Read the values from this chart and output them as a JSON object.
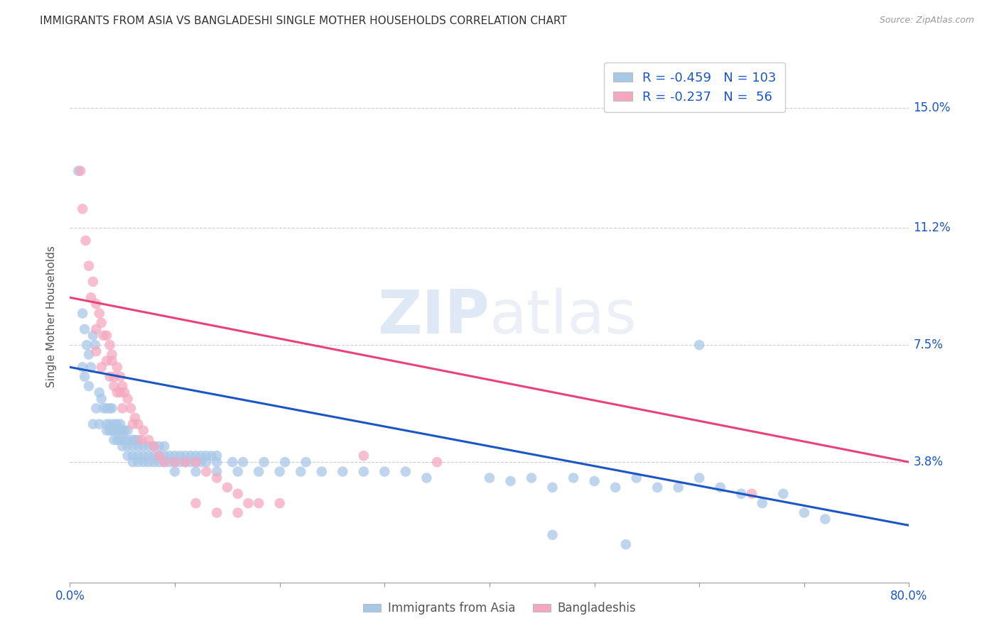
{
  "title": "IMMIGRANTS FROM ASIA VS BANGLADESHI SINGLE MOTHER HOUSEHOLDS CORRELATION CHART",
  "source": "Source: ZipAtlas.com",
  "ylabel": "Single Mother Households",
  "ytick_labels": [
    "15.0%",
    "11.2%",
    "7.5%",
    "3.8%"
  ],
  "ytick_values": [
    0.15,
    0.112,
    0.075,
    0.038
  ],
  "xlim": [
    0.0,
    0.8
  ],
  "ylim": [
    0.0,
    0.168
  ],
  "legend_blue_r": "-0.459",
  "legend_blue_n": "103",
  "legend_pink_r": "-0.237",
  "legend_pink_n": " 56",
  "blue_color": "#a8c8e8",
  "pink_color": "#f4a8c0",
  "trendline_blue_color": "#1a56c4",
  "trendline_pink_color": "#e8427a",
  "watermark_zip": "ZIP",
  "watermark_atlas": "atlas",
  "blue_scatter": [
    [
      0.008,
      0.13
    ],
    [
      0.012,
      0.085
    ],
    [
      0.014,
      0.08
    ],
    [
      0.016,
      0.075
    ],
    [
      0.018,
      0.072
    ],
    [
      0.012,
      0.068
    ],
    [
      0.014,
      0.065
    ],
    [
      0.018,
      0.062
    ],
    [
      0.022,
      0.078
    ],
    [
      0.024,
      0.075
    ],
    [
      0.02,
      0.068
    ],
    [
      0.028,
      0.06
    ],
    [
      0.03,
      0.058
    ],
    [
      0.032,
      0.055
    ],
    [
      0.025,
      0.055
    ],
    [
      0.022,
      0.05
    ],
    [
      0.028,
      0.05
    ],
    [
      0.035,
      0.055
    ],
    [
      0.038,
      0.055
    ],
    [
      0.04,
      0.055
    ],
    [
      0.035,
      0.05
    ],
    [
      0.038,
      0.05
    ],
    [
      0.042,
      0.05
    ],
    [
      0.045,
      0.05
    ],
    [
      0.048,
      0.05
    ],
    [
      0.035,
      0.048
    ],
    [
      0.038,
      0.048
    ],
    [
      0.04,
      0.048
    ],
    [
      0.042,
      0.048
    ],
    [
      0.045,
      0.048
    ],
    [
      0.048,
      0.048
    ],
    [
      0.05,
      0.048
    ],
    [
      0.052,
      0.048
    ],
    [
      0.055,
      0.048
    ],
    [
      0.042,
      0.045
    ],
    [
      0.045,
      0.045
    ],
    [
      0.048,
      0.045
    ],
    [
      0.052,
      0.045
    ],
    [
      0.055,
      0.045
    ],
    [
      0.06,
      0.045
    ],
    [
      0.062,
      0.045
    ],
    [
      0.065,
      0.045
    ],
    [
      0.05,
      0.043
    ],
    [
      0.055,
      0.043
    ],
    [
      0.06,
      0.043
    ],
    [
      0.065,
      0.043
    ],
    [
      0.07,
      0.043
    ],
    [
      0.075,
      0.043
    ],
    [
      0.08,
      0.043
    ],
    [
      0.085,
      0.043
    ],
    [
      0.09,
      0.043
    ],
    [
      0.055,
      0.04
    ],
    [
      0.06,
      0.04
    ],
    [
      0.065,
      0.04
    ],
    [
      0.07,
      0.04
    ],
    [
      0.075,
      0.04
    ],
    [
      0.08,
      0.04
    ],
    [
      0.085,
      0.04
    ],
    [
      0.09,
      0.04
    ],
    [
      0.095,
      0.04
    ],
    [
      0.1,
      0.04
    ],
    [
      0.105,
      0.04
    ],
    [
      0.11,
      0.04
    ],
    [
      0.115,
      0.04
    ],
    [
      0.12,
      0.04
    ],
    [
      0.125,
      0.04
    ],
    [
      0.13,
      0.04
    ],
    [
      0.135,
      0.04
    ],
    [
      0.14,
      0.04
    ],
    [
      0.06,
      0.038
    ],
    [
      0.065,
      0.038
    ],
    [
      0.07,
      0.038
    ],
    [
      0.075,
      0.038
    ],
    [
      0.08,
      0.038
    ],
    [
      0.085,
      0.038
    ],
    [
      0.09,
      0.038
    ],
    [
      0.095,
      0.038
    ],
    [
      0.1,
      0.038
    ],
    [
      0.105,
      0.038
    ],
    [
      0.11,
      0.038
    ],
    [
      0.115,
      0.038
    ],
    [
      0.12,
      0.038
    ],
    [
      0.125,
      0.038
    ],
    [
      0.13,
      0.038
    ],
    [
      0.14,
      0.038
    ],
    [
      0.155,
      0.038
    ],
    [
      0.165,
      0.038
    ],
    [
      0.185,
      0.038
    ],
    [
      0.205,
      0.038
    ],
    [
      0.225,
      0.038
    ],
    [
      0.1,
      0.035
    ],
    [
      0.12,
      0.035
    ],
    [
      0.14,
      0.035
    ],
    [
      0.16,
      0.035
    ],
    [
      0.18,
      0.035
    ],
    [
      0.2,
      0.035
    ],
    [
      0.22,
      0.035
    ],
    [
      0.24,
      0.035
    ],
    [
      0.26,
      0.035
    ],
    [
      0.28,
      0.035
    ],
    [
      0.3,
      0.035
    ],
    [
      0.32,
      0.035
    ],
    [
      0.34,
      0.033
    ],
    [
      0.4,
      0.033
    ],
    [
      0.42,
      0.032
    ],
    [
      0.44,
      0.033
    ],
    [
      0.46,
      0.03
    ],
    [
      0.48,
      0.033
    ],
    [
      0.5,
      0.032
    ],
    [
      0.52,
      0.03
    ],
    [
      0.54,
      0.033
    ],
    [
      0.56,
      0.03
    ],
    [
      0.58,
      0.03
    ],
    [
      0.6,
      0.033
    ],
    [
      0.62,
      0.03
    ],
    [
      0.64,
      0.028
    ],
    [
      0.66,
      0.025
    ],
    [
      0.68,
      0.028
    ],
    [
      0.7,
      0.022
    ],
    [
      0.72,
      0.02
    ],
    [
      0.6,
      0.075
    ],
    [
      0.46,
      0.015
    ],
    [
      0.53,
      0.012
    ]
  ],
  "pink_scatter": [
    [
      0.01,
      0.13
    ],
    [
      0.012,
      0.118
    ],
    [
      0.015,
      0.108
    ],
    [
      0.018,
      0.1
    ],
    [
      0.022,
      0.095
    ],
    [
      0.02,
      0.09
    ],
    [
      0.025,
      0.088
    ],
    [
      0.028,
      0.085
    ],
    [
      0.03,
      0.082
    ],
    [
      0.025,
      0.08
    ],
    [
      0.032,
      0.078
    ],
    [
      0.035,
      0.078
    ],
    [
      0.038,
      0.075
    ],
    [
      0.04,
      0.072
    ],
    [
      0.035,
      0.07
    ],
    [
      0.04,
      0.07
    ],
    [
      0.045,
      0.068
    ],
    [
      0.042,
      0.065
    ],
    [
      0.048,
      0.065
    ],
    [
      0.05,
      0.062
    ],
    [
      0.045,
      0.06
    ],
    [
      0.052,
      0.06
    ],
    [
      0.055,
      0.058
    ],
    [
      0.05,
      0.055
    ],
    [
      0.058,
      0.055
    ],
    [
      0.062,
      0.052
    ],
    [
      0.06,
      0.05
    ],
    [
      0.065,
      0.05
    ],
    [
      0.07,
      0.048
    ],
    [
      0.068,
      0.045
    ],
    [
      0.075,
      0.045
    ],
    [
      0.08,
      0.043
    ],
    [
      0.085,
      0.04
    ],
    [
      0.09,
      0.038
    ],
    [
      0.1,
      0.038
    ],
    [
      0.11,
      0.038
    ],
    [
      0.12,
      0.038
    ],
    [
      0.13,
      0.035
    ],
    [
      0.14,
      0.033
    ],
    [
      0.15,
      0.03
    ],
    [
      0.16,
      0.028
    ],
    [
      0.18,
      0.025
    ],
    [
      0.2,
      0.025
    ],
    [
      0.025,
      0.073
    ],
    [
      0.03,
      0.068
    ],
    [
      0.038,
      0.065
    ],
    [
      0.042,
      0.062
    ],
    [
      0.048,
      0.06
    ],
    [
      0.28,
      0.04
    ],
    [
      0.35,
      0.038
    ],
    [
      0.12,
      0.025
    ],
    [
      0.14,
      0.022
    ],
    [
      0.16,
      0.022
    ],
    [
      0.17,
      0.025
    ],
    [
      0.65,
      0.028
    ]
  ],
  "blue_trend_x": [
    0.0,
    0.8
  ],
  "blue_trend_y": [
    0.068,
    0.018
  ],
  "pink_trend_x": [
    0.0,
    0.8
  ],
  "pink_trend_y": [
    0.09,
    0.038
  ],
  "grid_color": "#cccccc",
  "bg_color": "#ffffff",
  "xtick_positions": [
    0.0,
    0.1,
    0.2,
    0.3,
    0.4,
    0.5,
    0.6,
    0.7,
    0.8
  ],
  "bottom_legend_labels": [
    "Immigrants from Asia",
    "Bangladeshis"
  ],
  "bottom_legend_colors": [
    "#a8c8e8",
    "#f4a8c0"
  ]
}
